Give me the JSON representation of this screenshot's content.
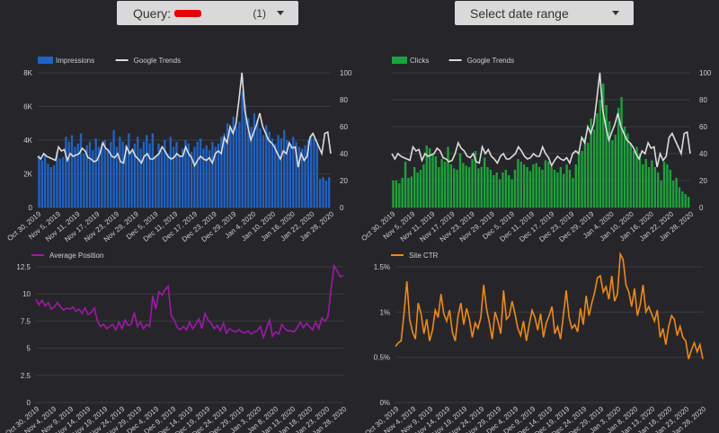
{
  "filters": [
    {
      "label": "Query:",
      "count": "(1)"
    },
    {
      "label": "Select date range"
    }
  ],
  "colors": {
    "impressions": "#1f63c6",
    "clicks": "#1aa33c",
    "trends": "#dcdcdc",
    "position": "#a218a8",
    "ctr": "#ef8a12",
    "grid": "#3c3c40",
    "text": "#cfcfcf"
  },
  "chart_data": [
    {
      "type": "bar",
      "legend": [
        {
          "name": "Impressions",
          "kind": "box"
        },
        {
          "name": "Google Trends",
          "kind": "line"
        }
      ],
      "x_tick_labels": [
        "Oct 30, 2019",
        "Nov 5, 2019",
        "Nov 11, 2019",
        "Nov 17, 2019",
        "Nov 23, 2019",
        "Nov 29, 2019",
        "Dec 5, 2019",
        "Dec 11, 2019",
        "Dec 17, 2019",
        "Dec 23, 2019",
        "Dec 29, 2019",
        "Jan 4, 2020",
        "Jan 10, 2020",
        "Jan 16, 2020",
        "Jan 22, 2020",
        "Jan 28, 2020"
      ],
      "y_left": {
        "ticks": [
          "0",
          "2K",
          "4K",
          "6K",
          "8K"
        ],
        "max": 8000
      },
      "y_right": {
        "ticks": [
          "0",
          "20",
          "40",
          "60",
          "80",
          "100"
        ],
        "max": 100
      },
      "bar_values": [
        3100,
        2800,
        3200,
        2600,
        2400,
        2500,
        3300,
        2900,
        3000,
        4200,
        3900,
        4300,
        3600,
        3800,
        4400,
        3200,
        3700,
        3900,
        3400,
        4100,
        3600,
        3800,
        4000,
        3500,
        3900,
        4600,
        3600,
        4200,
        3900,
        3700,
        4400,
        3300,
        3800,
        4200,
        3500,
        3900,
        4300,
        3800,
        4400,
        3100,
        3800,
        3400,
        4000,
        3200,
        4200,
        3600,
        3900,
        3100,
        3500,
        4000,
        3800,
        3300,
        3600,
        3900,
        4100,
        3500,
        3700,
        3400,
        3900,
        3600,
        3800,
        4200,
        4400,
        5000,
        4600,
        5400,
        4800,
        5100,
        6900,
        6100,
        5300,
        4800,
        5600,
        5200,
        4700,
        4300,
        4900,
        4500,
        4100,
        3800,
        4300,
        4100,
        4600,
        4000,
        3700,
        4200,
        3900,
        3600,
        3500,
        3700,
        4000,
        4300,
        4100,
        3800,
        1700,
        1800,
        1600,
        1800
      ],
      "trends_values": [
        38,
        36,
        40,
        38,
        37,
        36,
        35,
        45,
        42,
        43,
        35,
        40,
        38,
        39,
        40,
        44,
        42,
        37,
        36,
        34,
        35,
        40,
        48,
        44,
        42,
        38,
        37,
        40,
        34,
        33,
        45,
        40,
        43,
        38,
        36,
        33,
        38,
        40,
        36,
        36,
        38,
        40,
        45,
        42,
        38,
        36,
        37,
        40,
        38,
        38,
        45,
        40,
        37,
        31,
        35,
        38,
        36,
        35,
        37,
        33,
        40,
        42,
        40,
        52,
        48,
        60,
        55,
        62,
        80,
        100,
        72,
        60,
        50,
        56,
        62,
        70,
        60,
        55,
        50,
        48,
        45,
        40,
        36,
        42,
        40,
        48,
        44,
        45,
        30,
        40,
        35,
        38,
        52,
        55,
        50,
        45,
        40,
        55,
        56,
        40
      ]
    },
    {
      "type": "bar",
      "legend": [
        {
          "name": "Clicks",
          "kind": "box"
        },
        {
          "name": "Google Trends",
          "kind": "line"
        }
      ],
      "x_tick_labels": [
        "Oct 30, 2019",
        "Nov 5, 2019",
        "Nov 11, 2019",
        "Nov 17, 2019",
        "Nov 23, 2019",
        "Nov 29, 2019",
        "Dec 5, 2019",
        "Dec 11, 2019",
        "Dec 17, 2019",
        "Dec 23, 2019",
        "Dec 29, 2019",
        "Jan 4, 2020",
        "Jan 10, 2020",
        "Jan 16, 2020",
        "Jan 22, 2020",
        "Jan 28, 2020"
      ],
      "y_right": {
        "ticks": [
          "0",
          "20",
          "40",
          "60",
          "80",
          "100"
        ],
        "max": 100
      },
      "bar_values": [
        20,
        20,
        18,
        22,
        34,
        22,
        23,
        30,
        26,
        28,
        32,
        46,
        44,
        40,
        38,
        30,
        36,
        34,
        45,
        32,
        29,
        28,
        40,
        33,
        31,
        30,
        36,
        42,
        29,
        30,
        37,
        30,
        28,
        24,
        26,
        21,
        26,
        28,
        24,
        21,
        28,
        36,
        34,
        32,
        30,
        27,
        32,
        33,
        30,
        28,
        35,
        34,
        30,
        28,
        26,
        30,
        25,
        32,
        28,
        22,
        32,
        40,
        42,
        52,
        48,
        66,
        58,
        70,
        80,
        92,
        76,
        64,
        50,
        54,
        74,
        82,
        60,
        55,
        48,
        42,
        45,
        40,
        32,
        36,
        30,
        35,
        30,
        26,
        20,
        34,
        32,
        28,
        20,
        22,
        15,
        12,
        10,
        8
      ],
      "trends_values": [
        40,
        36,
        40,
        38,
        37,
        36,
        35,
        45,
        42,
        43,
        35,
        40,
        38,
        39,
        40,
        44,
        42,
        37,
        36,
        34,
        35,
        40,
        48,
        44,
        42,
        38,
        37,
        40,
        34,
        33,
        45,
        40,
        43,
        38,
        36,
        33,
        38,
        40,
        36,
        36,
        38,
        40,
        45,
        42,
        38,
        36,
        37,
        40,
        38,
        38,
        45,
        40,
        37,
        31,
        35,
        38,
        36,
        35,
        37,
        33,
        40,
        42,
        40,
        52,
        48,
        60,
        55,
        62,
        80,
        100,
        72,
        60,
        50,
        56,
        62,
        70,
        60,
        55,
        50,
        48,
        45,
        40,
        36,
        42,
        40,
        48,
        44,
        45,
        30,
        40,
        35,
        38,
        52,
        55,
        50,
        45,
        40,
        55,
        56,
        40
      ]
    },
    {
      "type": "line",
      "legend": [
        {
          "name": "Average Position",
          "kind": "line"
        }
      ],
      "x_tick_labels": [
        "Oct 30, 2019",
        "Nov 4, 2019",
        "Nov 9, 2019",
        "Nov 14, 2019",
        "Nov 19, 2019",
        "Nov 24, 2019",
        "Nov 29, 2019",
        "Dec 4, 2019",
        "Dec 9, 2019",
        "Dec 14, 2019",
        "Dec 19, 2019",
        "Dec 24, 2019",
        "Dec 29, 2019",
        "Jan 3, 2020",
        "Jan 8, 2020",
        "Jan 13, 2020",
        "Jan 18, 2020",
        "Jan 23, 2020",
        "Jan 28, 2020"
      ],
      "y_left": {
        "ticks": [
          "0",
          "2.5",
          "5",
          "7.5",
          "10",
          "12.5"
        ],
        "max": 12.5
      },
      "values": [
        9.5,
        9.0,
        9.4,
        8.9,
        9.2,
        8.6,
        8.8,
        9.2,
        8.8,
        8.5,
        8.7,
        8.6,
        8.8,
        8.4,
        8.6,
        8.2,
        8.7,
        8.1,
        8.3,
        8.7,
        7.5,
        7.0,
        7.2,
        6.8,
        7.0,
        7.2,
        6.7,
        7.4,
        6.8,
        7.6,
        7.1,
        7.2,
        8.3,
        7.0,
        7.4,
        6.8,
        7.2,
        7.0,
        9.8,
        8.6,
        10.2,
        9.9,
        10.4,
        10.7,
        8.0,
        7.6,
        6.9,
        6.7,
        7.0,
        6.7,
        7.4,
        6.8,
        7.2,
        7.7,
        6.8,
        8.2,
        7.6,
        7.3,
        6.8,
        7.1,
        6.6,
        7.3,
        6.4,
        6.8,
        6.6,
        6.5,
        6.7,
        6.5,
        6.4,
        6.6,
        6.3,
        6.5,
        6.6,
        7.0,
        6.0,
        6.8,
        7.6,
        6.1,
        6.5,
        6.3,
        7.2,
        6.8,
        6.6,
        6.6,
        6.5,
        6.9,
        7.4,
        6.9,
        7.3,
        7.0,
        6.7,
        7.4,
        6.8,
        7.8,
        7.5,
        7.9,
        10.4,
        12.6,
        12.1,
        11.6,
        11.7
      ]
    },
    {
      "type": "line",
      "legend": [
        {
          "name": "Site CTR",
          "kind": "line"
        }
      ],
      "x_tick_labels": [
        "Oct 30, 2019",
        "Nov 4, 2019",
        "Nov 9, 2019",
        "Nov 14, 2019",
        "Nov 19, 2019",
        "Nov 24, 2019",
        "Nov 29, 2019",
        "Dec 4, 2019",
        "Dec 9, 2019",
        "Dec 14, 2019",
        "Dec 19, 2019",
        "Dec 24, 2019",
        "Dec 29, 2019",
        "Jan 3, 2020",
        "Jan 8, 2020",
        "Jan 13, 2020",
        "Jan 18, 2020",
        "Jan 23, 2020",
        "Jan 28, 2020"
      ],
      "y_left": {
        "ticks": [
          "0%",
          "0.5%",
          "1%",
          "1.5%"
        ],
        "max": 1.5
      },
      "values": [
        0.62,
        0.66,
        0.68,
        0.98,
        1.34,
        0.92,
        0.78,
        0.7,
        1.1,
        0.98,
        0.76,
        0.92,
        0.68,
        0.8,
        1.02,
        0.94,
        1.2,
        0.98,
        0.9,
        1.02,
        0.78,
        0.68,
        0.96,
        1.1,
        0.86,
        1.04,
        0.92,
        0.72,
        0.88,
        0.82,
        0.94,
        1.3,
        1.04,
        0.88,
        0.7,
        1.0,
        0.9,
        0.76,
        1.24,
        0.92,
        0.96,
        1.12,
        0.98,
        0.82,
        0.74,
        0.9,
        0.68,
        0.86,
        1.02,
        0.94,
        0.8,
        0.98,
        0.72,
        0.88,
        0.96,
        1.06,
        0.76,
        0.84,
        0.7,
        0.96,
        1.24,
        0.94,
        0.82,
        0.86,
        0.78,
        1.04,
        0.86,
        1.18,
        0.96,
        1.1,
        1.22,
        1.38,
        1.4,
        1.22,
        1.28,
        1.14,
        1.4,
        1.12,
        1.2,
        1.64,
        1.58,
        1.3,
        1.22,
        1.06,
        1.26,
        0.96,
        1.08,
        1.3,
        1.0,
        1.06,
        0.98,
        0.9,
        1.02,
        0.72,
        0.82,
        0.64,
        0.84,
        0.96,
        0.92,
        0.74,
        0.84,
        0.72,
        0.68,
        0.48,
        0.58,
        0.66,
        0.56,
        0.64,
        0.48
      ]
    }
  ]
}
